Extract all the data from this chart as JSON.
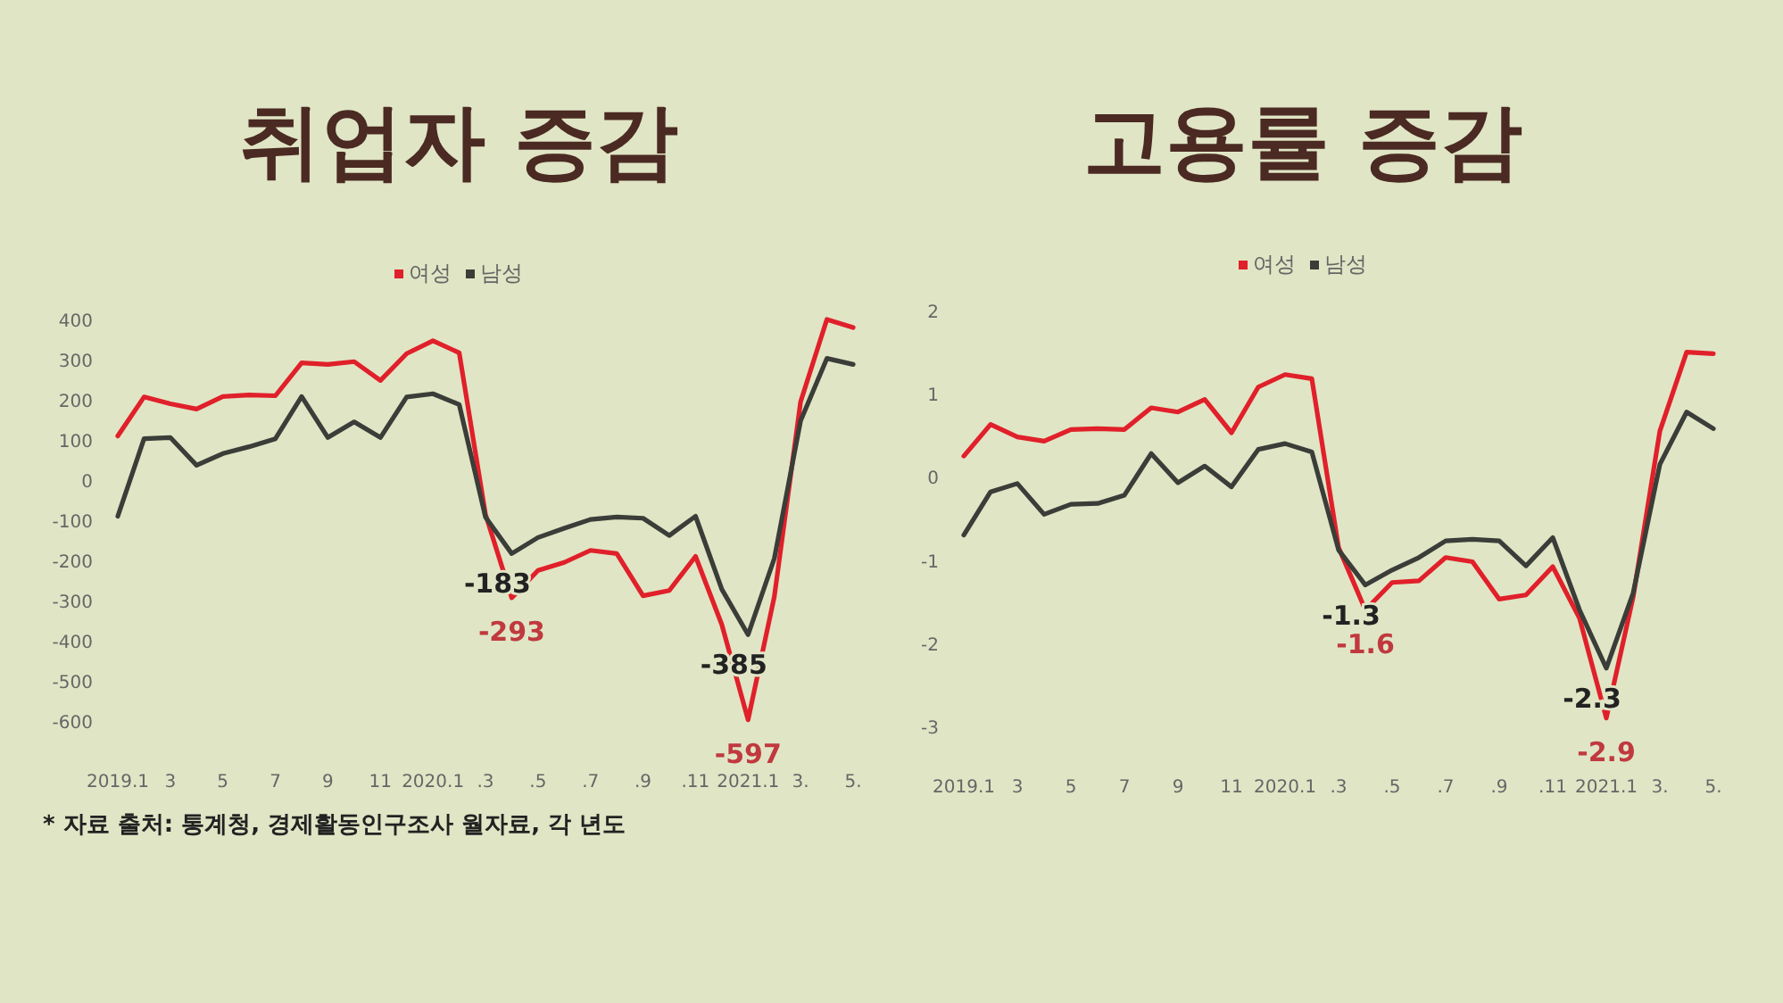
{
  "chart_data": [
    {
      "type": "line",
      "title": "취업자 증감",
      "legend": "top",
      "grid": false,
      "categories": [
        "2019.1",
        null,
        "3",
        null,
        "5",
        null,
        "7",
        null,
        "9",
        null,
        "11",
        null,
        "2020.1",
        null,
        ".3",
        null,
        ".5",
        null,
        ".7",
        null,
        ".9",
        null,
        ".11",
        null,
        "2021.1",
        null,
        "3.",
        null,
        "5."
      ],
      "ylim": [
        -600,
        400
      ],
      "yticks": [
        -600,
        -500,
        -400,
        -300,
        -200,
        -100,
        0,
        100,
        200,
        300,
        400
      ],
      "series": [
        {
          "name": "여성",
          "color": "#e0202a",
          "values": [
            110,
            207,
            190,
            177,
            208,
            212,
            210,
            292,
            288,
            295,
            248,
            315,
            347,
            317,
            -85,
            -293,
            -225,
            -205,
            -175,
            -183,
            -288,
            -275,
            -190,
            -360,
            -597,
            -290,
            195,
            400,
            380
          ],
          "value_labels": [
            null,
            null,
            null,
            null,
            null,
            null,
            null,
            null,
            null,
            null,
            null,
            null,
            null,
            null,
            null,
            "-293",
            null,
            null,
            null,
            null,
            null,
            null,
            null,
            null,
            "-597",
            null,
            null,
            null,
            null
          ]
        },
        {
          "name": "남성",
          "color": "#3a3d38",
          "values": [
            -90,
            103,
            106,
            37,
            66,
            83,
            103,
            208,
            106,
            145,
            106,
            207,
            215,
            188,
            -92,
            -183,
            -143,
            -120,
            -98,
            -92,
            -95,
            -138,
            -90,
            -272,
            -385,
            -195,
            148,
            303,
            288
          ],
          "value_labels": [
            null,
            null,
            null,
            null,
            null,
            null,
            null,
            null,
            null,
            null,
            null,
            null,
            null,
            null,
            null,
            "-183",
            null,
            null,
            null,
            null,
            null,
            null,
            null,
            null,
            "-385",
            null,
            null,
            null,
            null
          ]
        }
      ],
      "annotations": [
        "* 자료 출처: 통계청, 경제활동인구조사 월자료, 각 년도"
      ]
    },
    {
      "type": "line",
      "title": "고용률 증감",
      "legend": "top",
      "grid": false,
      "categories": [
        "2019.1",
        null,
        "3",
        null,
        "5",
        null,
        "7",
        null,
        "9",
        null,
        "11",
        null,
        "2020.1",
        null,
        ".3",
        null,
        ".5",
        null,
        ".7",
        null,
        ".9",
        null,
        ".11",
        null,
        "2021.1",
        null,
        "3.",
        null,
        "5."
      ],
      "ylim": [
        -3,
        2
      ],
      "yticks": [
        -3,
        -2,
        -1,
        0,
        1,
        2
      ],
      "series": [
        {
          "name": "여성",
          "color": "#e0202a",
          "values": [
            0.25,
            0.63,
            0.48,
            0.43,
            0.57,
            0.58,
            0.57,
            0.83,
            0.78,
            0.93,
            0.53,
            1.08,
            1.23,
            1.18,
            -0.85,
            -1.6,
            -1.27,
            -1.25,
            -0.97,
            -1.02,
            -1.47,
            -1.42,
            -1.08,
            -1.7,
            -2.9,
            -1.45,
            0.55,
            1.5,
            1.48
          ],
          "value_labels": [
            null,
            null,
            null,
            null,
            null,
            null,
            null,
            null,
            null,
            null,
            null,
            null,
            null,
            null,
            null,
            "-1.6",
            null,
            null,
            null,
            null,
            null,
            null,
            null,
            null,
            "-2.9",
            null,
            null,
            null,
            null
          ]
        },
        {
          "name": "남성",
          "color": "#3a3d38",
          "values": [
            -0.7,
            -0.18,
            -0.08,
            -0.45,
            -0.33,
            -0.32,
            -0.22,
            0.28,
            -0.07,
            0.13,
            -0.12,
            0.33,
            0.4,
            0.3,
            -0.88,
            -1.3,
            -1.12,
            -0.97,
            -0.77,
            -0.75,
            -0.77,
            -1.07,
            -0.73,
            -1.6,
            -2.3,
            -1.4,
            0.15,
            0.78,
            0.58
          ],
          "value_labels": [
            null,
            null,
            null,
            null,
            null,
            null,
            null,
            null,
            null,
            null,
            null,
            null,
            null,
            null,
            null,
            "-1.3",
            null,
            null,
            null,
            null,
            null,
            null,
            null,
            null,
            "-2.3",
            null,
            null,
            null,
            null
          ]
        }
      ]
    }
  ]
}
